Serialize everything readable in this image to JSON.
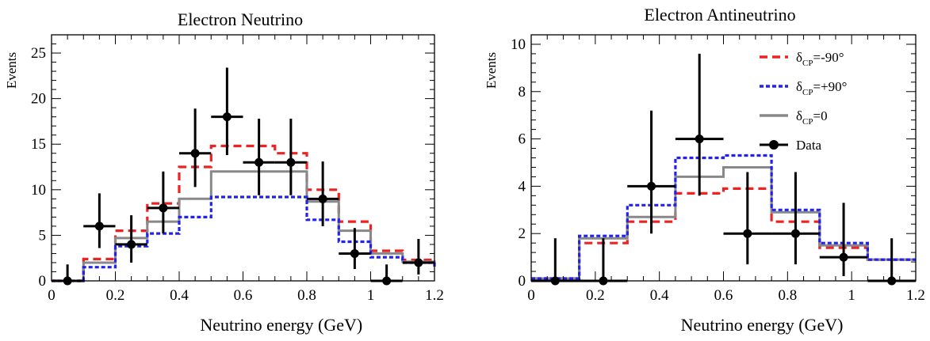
{
  "colors": {
    "minus90": "#ee2222",
    "plus90": "#2222ee",
    "zero": "#888888",
    "data": "#000000",
    "frame": "#000000"
  },
  "legend": {
    "placement": "top-right",
    "entries": [
      {
        "key": "minus90",
        "sym": "δ",
        "sub": "CP",
        "suffix": "=-90°"
      },
      {
        "key": "plus90",
        "sym": "δ",
        "sub": "CP",
        "suffix": "=+90°"
      },
      {
        "key": "zero",
        "sym": "δ",
        "sub": "CP",
        "suffix": "=0"
      },
      {
        "key": "data",
        "sym": "",
        "sub": "",
        "suffix": "Data"
      }
    ]
  },
  "chart_data": [
    {
      "type": "step",
      "title": "Electron Neutrino",
      "xlabel": "Neutrino energy (GeV)",
      "ylabel": "Events",
      "xlim": [
        0,
        1.2
      ],
      "ylim": [
        0,
        27
      ],
      "xticks": [
        "0",
        "0.2",
        "0.4",
        "0.6",
        "0.8",
        "1",
        "1.2"
      ],
      "yticks": [
        "0",
        "5",
        "10",
        "15",
        "20",
        "25"
      ],
      "grid": false,
      "bin_edges": [
        0,
        0.1,
        0.2,
        0.3,
        0.4,
        0.5,
        0.6,
        0.7,
        0.8,
        0.9,
        1.0,
        1.1,
        1.2
      ],
      "series": [
        {
          "key": "minus90",
          "values": [
            0,
            2.4,
            5.5,
            8.5,
            12.5,
            14.8,
            14.8,
            14.0,
            10.0,
            6.5,
            3.3,
            2.3,
            1.8
          ]
        },
        {
          "key": "zero",
          "values": [
            0,
            2.0,
            4.7,
            6.5,
            9.0,
            12.0,
            12.0,
            12.0,
            8.7,
            5.5,
            3.0,
            2.1,
            1.6
          ]
        },
        {
          "key": "plus90",
          "values": [
            0,
            1.5,
            3.8,
            5.2,
            7.0,
            9.2,
            9.2,
            9.2,
            6.7,
            4.3,
            2.6,
            2.0,
            1.5
          ]
        }
      ],
      "data_points": {
        "x": [
          0.05,
          0.15,
          0.25,
          0.35,
          0.45,
          0.55,
          0.65,
          0.75,
          0.85,
          0.95,
          1.05,
          1.15
        ],
        "y": [
          0,
          6,
          4,
          8,
          14,
          18,
          13,
          13,
          9,
          3,
          0,
          2
        ],
        "xerr": 0.05,
        "yerr_low": [
          0,
          2.4,
          2.0,
          2.8,
          3.7,
          4.2,
          3.6,
          3.6,
          3.0,
          1.7,
          0,
          1.3
        ],
        "yerr_high": [
          1.8,
          3.6,
          3.2,
          4.0,
          4.9,
          5.4,
          4.8,
          4.8,
          4.1,
          2.8,
          1.8,
          2.6
        ]
      }
    },
    {
      "type": "step",
      "title": "Electron Antineutrino",
      "xlabel": "Neutrino energy (GeV)",
      "ylabel": "Events",
      "xlim": [
        0,
        1.2
      ],
      "ylim": [
        0,
        10.4
      ],
      "xticks": [
        "0",
        "0.2",
        "0.4",
        "0.6",
        "0.8",
        "1",
        "1.2"
      ],
      "yticks": [
        "0",
        "2",
        "4",
        "6",
        "8",
        "10"
      ],
      "grid": false,
      "bin_edges": [
        0,
        0.15,
        0.3,
        0.45,
        0.6,
        0.75,
        0.9,
        1.05,
        1.2
      ],
      "series": [
        {
          "key": "minus90",
          "values": [
            0.1,
            1.6,
            2.5,
            3.7,
            3.9,
            2.5,
            1.4,
            0.9
          ]
        },
        {
          "key": "zero",
          "values": [
            0.1,
            1.8,
            2.7,
            4.4,
            4.8,
            2.9,
            1.5,
            0.9
          ]
        },
        {
          "key": "plus90",
          "values": [
            0.1,
            1.9,
            3.2,
            5.2,
            5.3,
            3.0,
            1.6,
            0.9
          ]
        }
      ],
      "data_points": {
        "x": [
          0.075,
          0.225,
          0.375,
          0.525,
          0.675,
          0.825,
          0.975,
          1.125
        ],
        "y": [
          0,
          0,
          4,
          6,
          2,
          2,
          1,
          0
        ],
        "xerr": 0.075,
        "yerr_low": [
          0,
          0,
          2.0,
          2.4,
          1.3,
          1.3,
          0.8,
          0
        ],
        "yerr_high": [
          1.8,
          1.8,
          3.2,
          3.6,
          2.6,
          2.6,
          2.3,
          1.8
        ]
      }
    }
  ]
}
